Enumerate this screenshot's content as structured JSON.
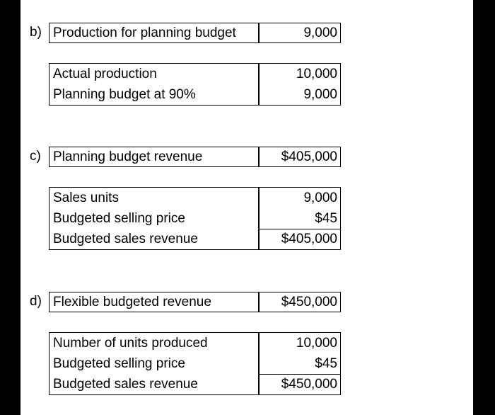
{
  "sections": {
    "b": {
      "label": "b)",
      "summary": {
        "text": "Production for planning budget",
        "value": "9,000"
      },
      "detail": {
        "rows": [
          {
            "text": "Actual production",
            "value": "10,000"
          },
          {
            "text": "Planning budget at 90%",
            "value": "9,000"
          }
        ]
      }
    },
    "c": {
      "label": "c)",
      "summary": {
        "text": "Planning budget revenue",
        "value": "$405,000"
      },
      "detail": {
        "rows": [
          {
            "text": "Sales units",
            "value": "9,000"
          },
          {
            "text": "Budgeted selling price",
            "value": "$45"
          },
          {
            "text": "Budgeted sales revenue",
            "value": "$405,000"
          }
        ]
      }
    },
    "d": {
      "label": "d)",
      "summary": {
        "text": "Flexible budgeted revenue",
        "value": "$450,000"
      },
      "detail": {
        "rows": [
          {
            "text": "Number of units produced",
            "value": "10,000"
          },
          {
            "text": "Budgeted selling price",
            "value": "$45"
          },
          {
            "text": "Budgeted sales revenue",
            "value": "$450,000"
          }
        ]
      }
    }
  }
}
